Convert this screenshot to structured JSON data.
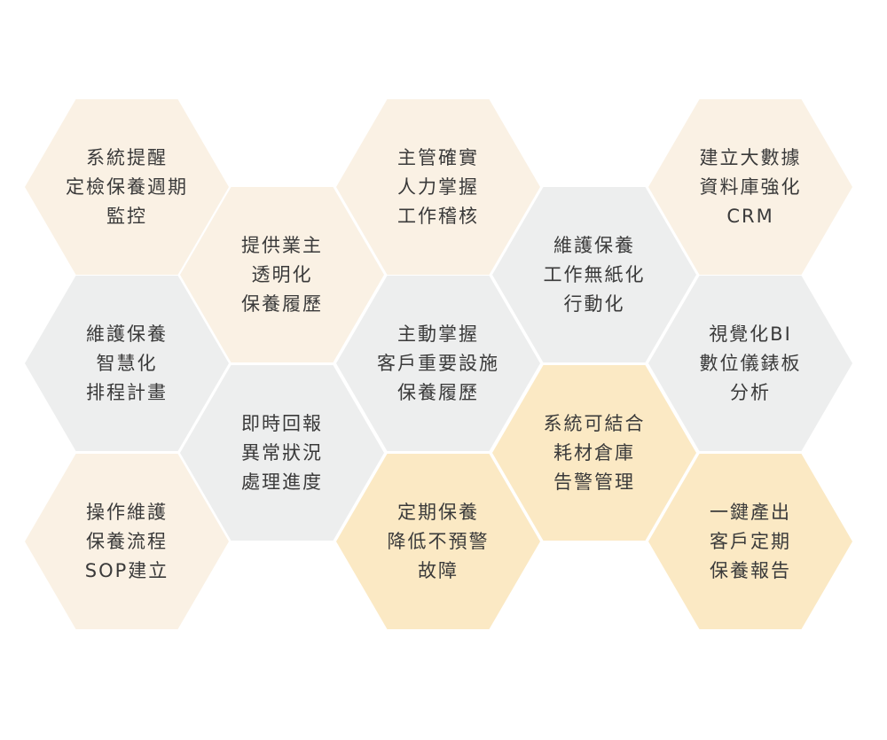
{
  "colors": {
    "cream": "#faf1e4",
    "gray": "#edeeee",
    "gold": "#fbe9c4",
    "text": "#3a3a3a"
  },
  "hexagons": [
    {
      "text": "系統提醒\n定檢保養週期\n監控",
      "color": "cream"
    },
    {
      "text": "維護保養\n智慧化\n排程計畫",
      "color": "gray"
    },
    {
      "text": "操作維護\n保養流程\nSOP建立",
      "color": "cream"
    },
    {
      "text": "提供業主\n透明化\n保養履歷",
      "color": "cream"
    },
    {
      "text": "即時回報\n異常狀況\n處理進度",
      "color": "gray"
    },
    {
      "text": "主管確實\n人力掌握\n工作稽核",
      "color": "cream"
    },
    {
      "text": "主動掌握\n客戶重要設施\n保養履歷",
      "color": "gray"
    },
    {
      "text": "定期保養\n降低不預警\n故障",
      "color": "gold"
    },
    {
      "text": "維護保養\n工作無紙化\n行動化",
      "color": "gray"
    },
    {
      "text": "系統可結合\n耗材倉庫\n告警管理",
      "color": "gold"
    },
    {
      "text": "建立大數據\n資料庫強化\nCRM",
      "color": "cream"
    },
    {
      "text": "視覺化BI\n數位儀錶板\n分析",
      "color": "gray"
    },
    {
      "text": "一鍵產出\n客戶定期\n保養報告",
      "color": "gold"
    }
  ]
}
